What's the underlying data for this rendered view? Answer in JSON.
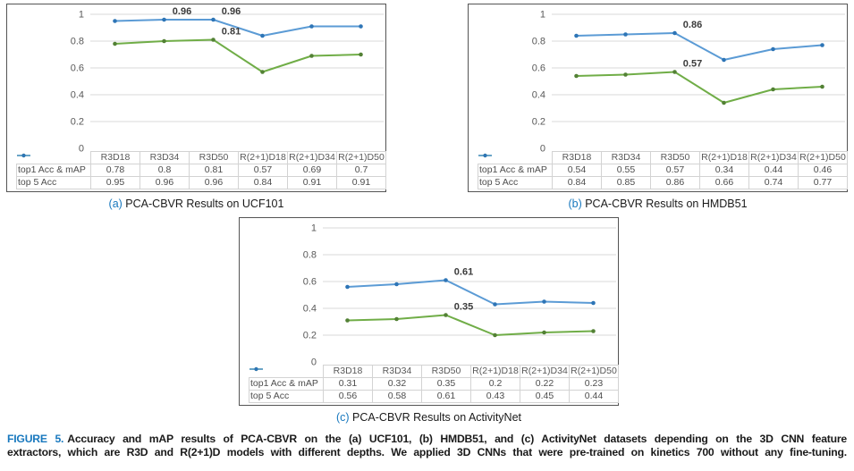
{
  "figure_caption": {
    "label": "FIGURE 5.",
    "line1": "Accuracy and mAP results of PCA-CBVR on the (a) UCF101, (b) HMDB51, and (c) ActivityNet datasets depending on the 3D CNN feature",
    "line2": "extractors, which are R3D and R(2+1)D models with different depths. We applied 3D CNNs that were pre-trained on kinetics 700 without any fine-tuning."
  },
  "colors": {
    "accent_blue": "#1878BE",
    "series_top1_green": "#70AD47",
    "series_top5_blue": "#5B9BD5",
    "gridline": "#D9D9D9",
    "axis_text": "#595959",
    "annotation_text": "#3B3B3B"
  },
  "chart_data": [
    {
      "type": "line",
      "subcaption": {
        "letter": "(a)",
        "text": "PCA-CBVR Results on UCF101"
      },
      "categories": [
        "R3D18",
        "R3D34",
        "R3D50",
        "R(2+1)D18",
        "R(2+1)D34",
        "R(2+1)D50"
      ],
      "series": [
        {
          "name": "top1 Acc & mAP",
          "color": "#70AD47",
          "marker_color": "#538135",
          "values": [
            0.78,
            0.8,
            0.81,
            0.57,
            0.69,
            0.7
          ]
        },
        {
          "name": "top 5 Acc",
          "color": "#5B9BD5",
          "marker_color": "#2E75B6",
          "values": [
            0.95,
            0.96,
            0.96,
            0.84,
            0.91,
            0.91
          ]
        }
      ],
      "annotations": [
        {
          "text": "0.96",
          "series": 1,
          "col": 1
        },
        {
          "text": "0.96",
          "series": 1,
          "col": 2
        },
        {
          "text": "0.81",
          "series": 0,
          "col": 2
        }
      ],
      "ylim": [
        0,
        1
      ],
      "yticks": [
        1,
        0.8,
        0.6,
        0.4,
        0.2,
        0
      ],
      "grid": true,
      "legend_position": "table-left"
    },
    {
      "type": "line",
      "subcaption": {
        "letter": "(b)",
        "text": "PCA-CBVR Results on HMDB51"
      },
      "categories": [
        "R3D18",
        "R3D34",
        "R3D50",
        "R(2+1)D18",
        "R(2+1)D34",
        "R(2+1)D50"
      ],
      "series": [
        {
          "name": "top1 Acc & mAP",
          "color": "#70AD47",
          "marker_color": "#538135",
          "values": [
            0.54,
            0.55,
            0.57,
            0.34,
            0.44,
            0.46
          ]
        },
        {
          "name": "top 5 Acc",
          "color": "#5B9BD5",
          "marker_color": "#2E75B6",
          "values": [
            0.84,
            0.85,
            0.86,
            0.66,
            0.74,
            0.77
          ]
        }
      ],
      "annotations": [
        {
          "text": "0.86",
          "series": 1,
          "col": 2
        },
        {
          "text": "0.57",
          "series": 0,
          "col": 2
        }
      ],
      "ylim": [
        0,
        1
      ],
      "yticks": [
        1,
        0.8,
        0.6,
        0.4,
        0.2,
        0
      ],
      "grid": true,
      "legend_position": "table-left"
    },
    {
      "type": "line",
      "subcaption": {
        "letter": "(c)",
        "text": "PCA-CBVR Results on ActivityNet"
      },
      "categories": [
        "R3D18",
        "R3D34",
        "R3D50",
        "R(2+1)D18",
        "R(2+1)D34",
        "R(2+1)D50"
      ],
      "series": [
        {
          "name": "top1 Acc & mAP",
          "color": "#70AD47",
          "marker_color": "#538135",
          "values": [
            0.31,
            0.32,
            0.35,
            0.2,
            0.22,
            0.23
          ]
        },
        {
          "name": "top 5 Acc",
          "color": "#5B9BD5",
          "marker_color": "#2E75B6",
          "values": [
            0.56,
            0.58,
            0.61,
            0.43,
            0.45,
            0.44
          ]
        }
      ],
      "annotations": [
        {
          "text": "0.61",
          "series": 1,
          "col": 2
        },
        {
          "text": "0.35",
          "series": 0,
          "col": 2
        }
      ],
      "ylim": [
        0,
        1
      ],
      "yticks": [
        1,
        0.8,
        0.6,
        0.4,
        0.2,
        0
      ],
      "grid": true,
      "legend_position": "table-left"
    }
  ]
}
